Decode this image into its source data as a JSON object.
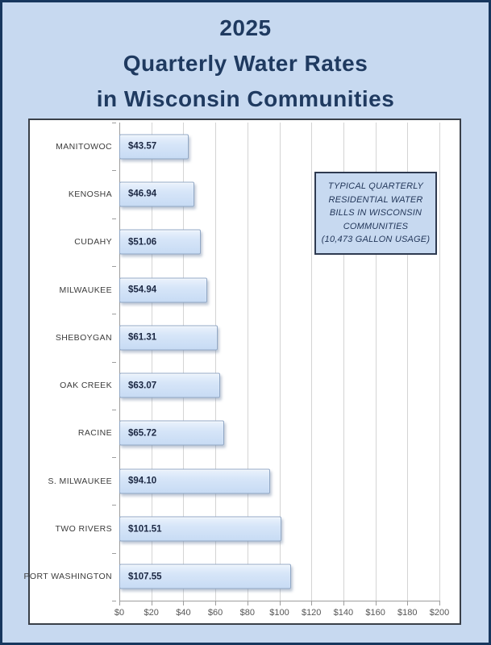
{
  "window": {
    "background_color": "#c7d9f0",
    "border_color": "#17375e"
  },
  "chart_data": {
    "type": "bar",
    "orientation": "horizontal",
    "title_lines": [
      "2025",
      "Quarterly Water Rates",
      "in Wisconsin Communities"
    ],
    "title": "2025 Quarterly Water Rates in Wisconsin Communities",
    "categories": [
      "MANITOWOC",
      "KENOSHA",
      "CUDAHY",
      "MILWAUKEE",
      "SHEBOYGAN",
      "OAK CREEK",
      "RACINE",
      "S. MILWAUKEE",
      "TWO RIVERS",
      "PORT WASHINGTON"
    ],
    "values": [
      43.57,
      46.94,
      51.06,
      54.94,
      61.31,
      63.07,
      65.72,
      94.1,
      101.51,
      107.55
    ],
    "value_labels": [
      "$43.57",
      "$46.94",
      "$51.06",
      "$54.94",
      "$61.31",
      "$63.07",
      "$65.72",
      "$94.10",
      "$101.51",
      "$107.55"
    ],
    "xlabel": "",
    "ylabel": "",
    "xlim": [
      0,
      200
    ],
    "x_ticks": [
      0,
      20,
      40,
      60,
      80,
      100,
      120,
      140,
      160,
      180,
      200
    ],
    "x_tick_labels": [
      "$0",
      "$20",
      "$40",
      "$60",
      "$80",
      "$100",
      "$120",
      "$140",
      "$160",
      "$180",
      "$200"
    ],
    "grid": "vertical",
    "legend": null,
    "annotation_lines": [
      "TYPICAL QUARTERLY",
      "RESIDENTIAL WATER",
      "BILLS IN WISCONSIN",
      "COMMUNITIES",
      "(10,473 GALLON USAGE)"
    ],
    "colors": {
      "bar_fill": "#d6e5f8",
      "bar_border": "#90a7c5",
      "title_text": "#1f3a60",
      "gridline": "#d4d4d4",
      "axis_line": "#9d9d9d",
      "annotation_fill": "#c7d9f0",
      "annotation_border": "#2e3a50"
    }
  }
}
